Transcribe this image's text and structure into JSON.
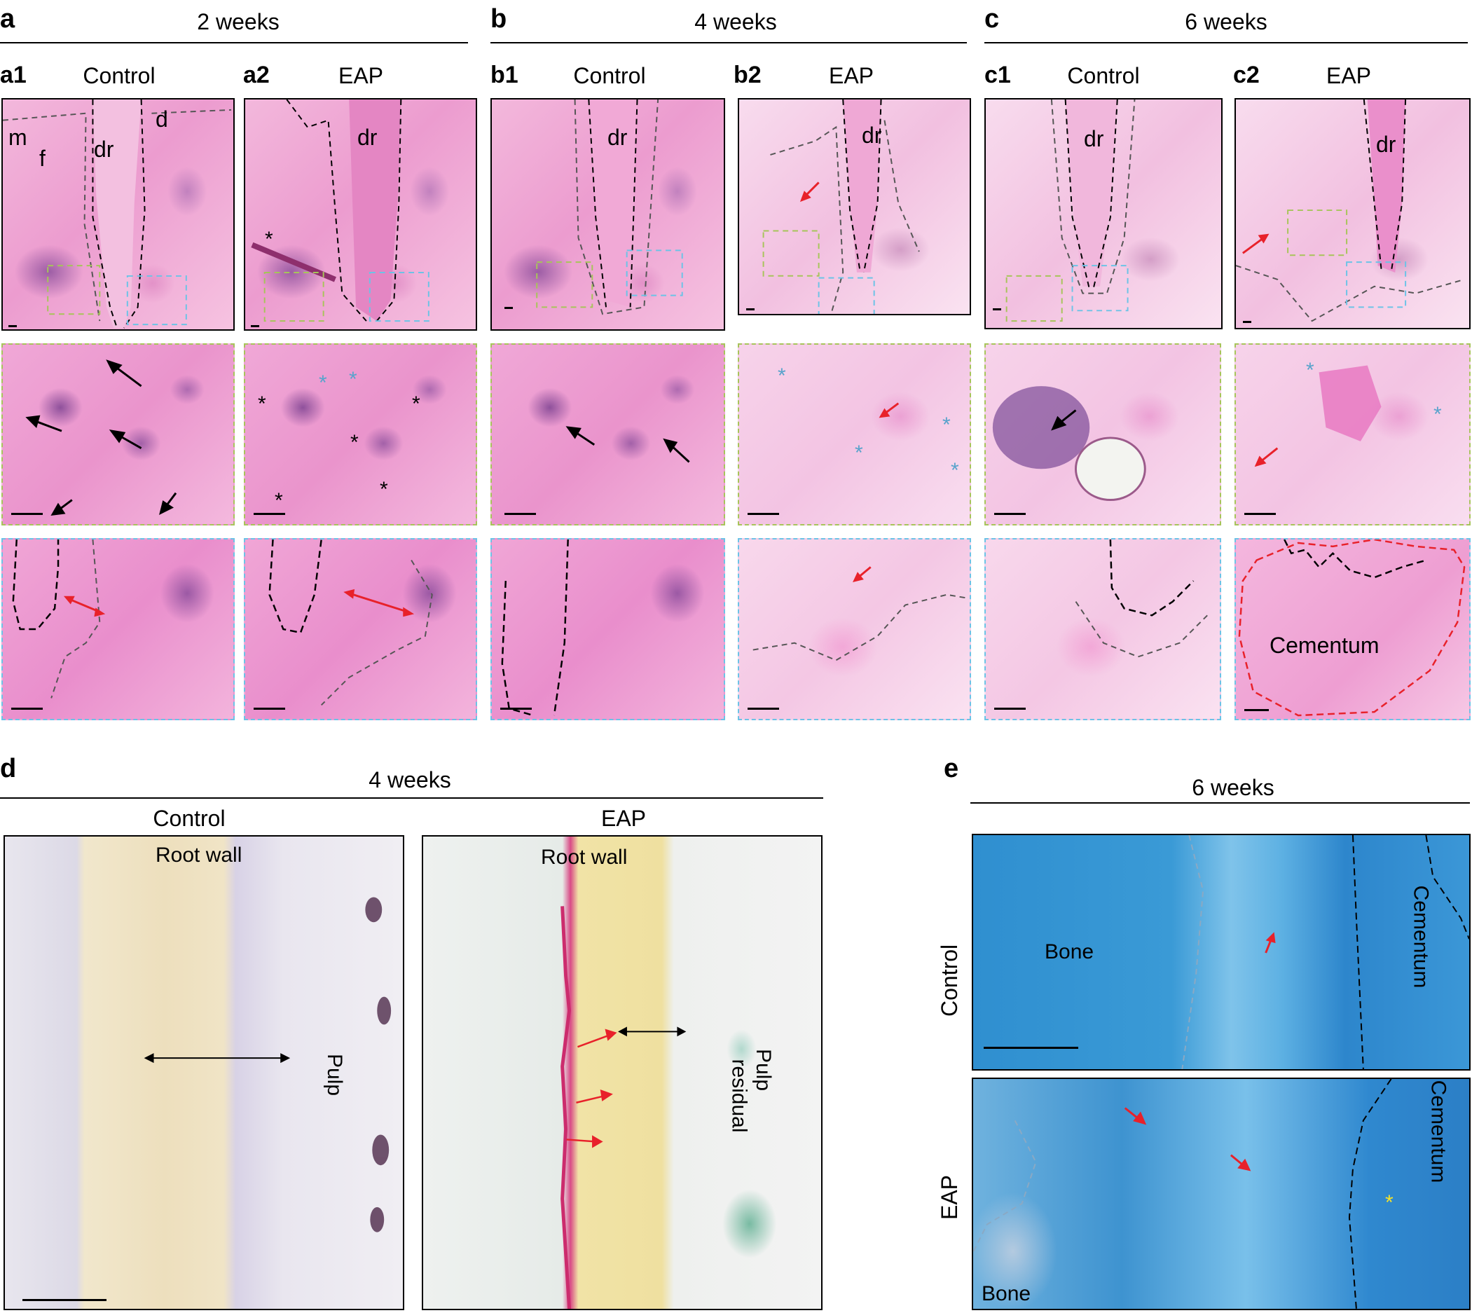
{
  "figure": {
    "a": {
      "letter": "a",
      "period": "2 weeks",
      "a1": {
        "sub": "a1",
        "condition": "Control",
        "labels": {
          "m": "m",
          "f": "f",
          "dr": "dr",
          "d": "d"
        }
      },
      "a2": {
        "sub": "a2",
        "condition": "EAP",
        "labels": {
          "dr": "dr"
        }
      }
    },
    "b": {
      "letter": "b",
      "period": "4 weeks",
      "b1": {
        "sub": "b1",
        "condition": "Control",
        "labels": {
          "dr": "dr"
        }
      },
      "b2": {
        "sub": "b2",
        "condition": "EAP",
        "labels": {
          "dr": "dr"
        }
      }
    },
    "c": {
      "letter": "c",
      "period": "6 weeks",
      "c1": {
        "sub": "c1",
        "condition": "Control",
        "labels": {
          "dr": "dr"
        }
      },
      "c2": {
        "sub": "c2",
        "condition": "EAP",
        "labels": {
          "dr": "dr",
          "cementum": "Cementum"
        }
      }
    },
    "d": {
      "letter": "d",
      "period": "4 weeks",
      "control": {
        "condition": "Control",
        "root_wall": "Root wall",
        "pulp": "Pulp"
      },
      "eap": {
        "condition": "EAP",
        "root_wall": "Root wall",
        "pulp_line1": "Pulp",
        "pulp_line2": "residual"
      }
    },
    "e": {
      "letter": "e",
      "period": "6 weeks",
      "control": {
        "condition": "Control",
        "bone": "Bone",
        "cementum": "Cementum"
      },
      "eap": {
        "condition": "EAP",
        "bone": "Bone",
        "cementum": "Cementum"
      }
    }
  },
  "colors": {
    "arrow_red": "#e8212a",
    "arrow_black": "#000000",
    "star_blue": "#5aa3cc",
    "star_yellow": "#f4e22a",
    "box_green": "#a7c45a",
    "box_blue": "#6cc3e6"
  }
}
